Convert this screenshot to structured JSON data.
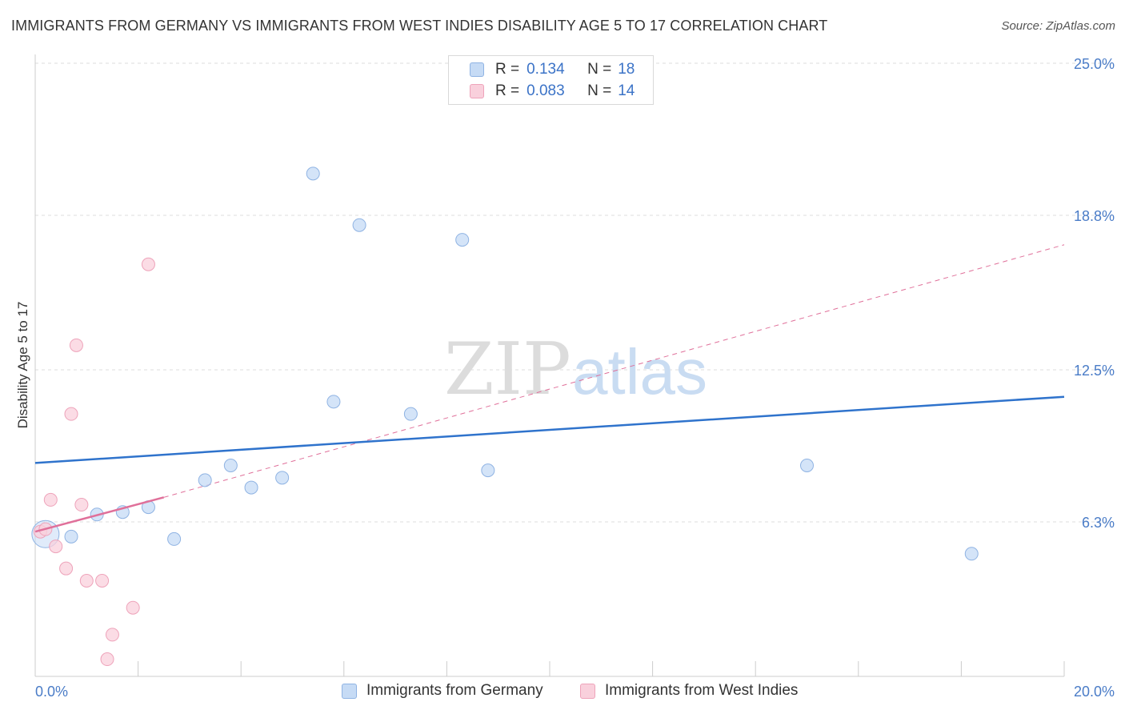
{
  "title": "IMMIGRANTS FROM GERMANY VS IMMIGRANTS FROM WEST INDIES DISABILITY AGE 5 TO 17 CORRELATION CHART",
  "source": "Source: ZipAtlas.com",
  "watermark": {
    "zip": "ZIP",
    "atlas": "atlas"
  },
  "colors": {
    "germany_fill": "#c6dbf5",
    "germany_stroke": "#8fb3e3",
    "germany_line": "#2f73cc",
    "westindies_fill": "#f9d0dc",
    "westindies_stroke": "#eea3ba",
    "westindies_line": "#e0709a",
    "grid": "#dddddd",
    "axis_text": "#4a7cc7"
  },
  "legend": {
    "r_label": "R =",
    "n_label": "N =",
    "rows": [
      {
        "r": "0.134",
        "n": "18"
      },
      {
        "r": "0.083",
        "n": "14"
      }
    ]
  },
  "chart_data": {
    "type": "scatter",
    "title": "IMMIGRANTS FROM GERMANY VS IMMIGRANTS FROM WEST INDIES DISABILITY AGE 5 TO 17 CORRELATION CHART",
    "xlabel": "",
    "ylabel": "Disability Age 5 to 17",
    "xlim": [
      0,
      20
    ],
    "ylim": [
      0,
      25
    ],
    "x_tick_labels": [
      "0.0%",
      "20.0%"
    ],
    "y_ticks": [
      6.3,
      12.5,
      18.8,
      25.0
    ],
    "y_tick_labels": [
      "6.3%",
      "12.5%",
      "18.8%",
      "25.0%"
    ],
    "grid": true,
    "legend_position": "bottom",
    "series": [
      {
        "name": "Immigrants from Germany",
        "r": 0.134,
        "n": 18,
        "points": [
          {
            "x": 0.2,
            "y": 5.8,
            "big": true
          },
          {
            "x": 0.7,
            "y": 5.7
          },
          {
            "x": 1.2,
            "y": 6.6
          },
          {
            "x": 1.7,
            "y": 6.7
          },
          {
            "x": 2.2,
            "y": 6.9
          },
          {
            "x": 2.7,
            "y": 5.6
          },
          {
            "x": 3.3,
            "y": 8.0
          },
          {
            "x": 3.8,
            "y": 8.6
          },
          {
            "x": 4.2,
            "y": 7.7
          },
          {
            "x": 4.8,
            "y": 8.1
          },
          {
            "x": 5.4,
            "y": 20.5
          },
          {
            "x": 5.8,
            "y": 11.2
          },
          {
            "x": 6.3,
            "y": 18.4
          },
          {
            "x": 7.3,
            "y": 10.7
          },
          {
            "x": 8.3,
            "y": 17.8
          },
          {
            "x": 8.8,
            "y": 8.4
          },
          {
            "x": 15.0,
            "y": 8.6
          },
          {
            "x": 18.2,
            "y": 5.0
          }
        ],
        "trend": {
          "x0": 0,
          "y0": 8.7,
          "x1": 20,
          "y1": 11.4
        }
      },
      {
        "name": "Immigrants from West Indies",
        "r": 0.083,
        "n": 14,
        "points": [
          {
            "x": 0.1,
            "y": 5.9
          },
          {
            "x": 0.2,
            "y": 6.0
          },
          {
            "x": 0.3,
            "y": 7.2
          },
          {
            "x": 0.4,
            "y": 5.3
          },
          {
            "x": 0.6,
            "y": 4.4
          },
          {
            "x": 0.7,
            "y": 10.7
          },
          {
            "x": 0.8,
            "y": 13.5
          },
          {
            "x": 0.9,
            "y": 7.0
          },
          {
            "x": 1.0,
            "y": 3.9
          },
          {
            "x": 1.3,
            "y": 3.9
          },
          {
            "x": 1.5,
            "y": 1.7
          },
          {
            "x": 1.4,
            "y": 0.7
          },
          {
            "x": 1.9,
            "y": 2.8
          },
          {
            "x": 2.2,
            "y": 16.8
          }
        ],
        "trend": {
          "x0": 0,
          "y0": 5.9,
          "x1": 2.5,
          "y1": 7.3
        },
        "trend_dashed": {
          "x0": 2.5,
          "y0": 7.3,
          "x1": 20,
          "y1": 17.6
        }
      }
    ]
  }
}
